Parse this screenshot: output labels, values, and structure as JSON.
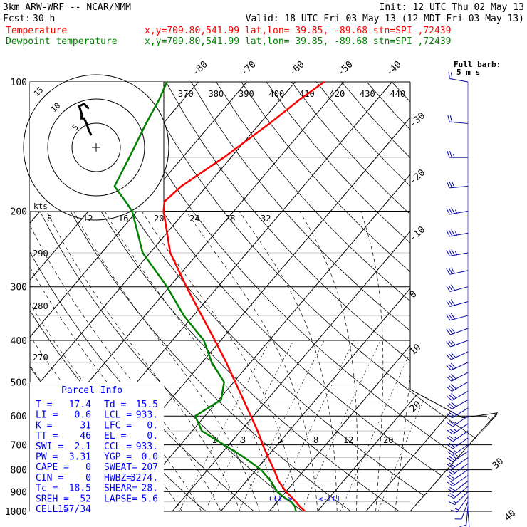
{
  "header": {
    "model": "3km ARW-WRF -- NCAR/MMM",
    "init": "Init: 12 UTC Thu 02 May 13",
    "fcst_label": "Fcst:",
    "fcst_value": "30 h",
    "valid": "Valid: 18 UTC Fri 03 May 13 (12 MDT Fri 03 May 13)"
  },
  "legend": {
    "temperature": {
      "name": "Temperature",
      "color": "#ff0000",
      "loc": "x,y=709.80,541.99  lat,lon= 39.85, -89.68  stn=SPI ,72439"
    },
    "dewpoint": {
      "name": "Dewpoint temperature",
      "color": "#008000",
      "loc": "x,y=709.80,541.99  lat,lon= 39.85, -89.68  stn=SPI ,72439"
    }
  },
  "barb_legend": {
    "line1": "Full barb:",
    "line2": "5 m s"
  },
  "hodograph": {
    "rings": [
      "5",
      "10",
      "15"
    ],
    "axis_label": "kts"
  },
  "parcel": {
    "title": "Parcel Info",
    "rows": [
      [
        "T  =",
        "17.4",
        "Td =",
        "15.5"
      ],
      [
        "LI =",
        "0.6",
        "LCL =",
        "933."
      ],
      [
        "K  =",
        "31",
        "LFC =",
        "0."
      ],
      [
        "TT =",
        "46",
        "EL  =",
        "0."
      ],
      [
        "SWI =",
        "2.1",
        "CCL =",
        "933."
      ],
      [
        "PW =",
        "3.31",
        "YGP =",
        "0.0"
      ],
      [
        "CAPE =",
        "0",
        "SWEAT=",
        "207"
      ],
      [
        "CIN =",
        "0",
        "HWBZ=",
        "3274."
      ],
      [
        "Tc =",
        "18.5",
        "SHEAR=",
        "28."
      ],
      [
        "SREH =",
        "52",
        "LAPSE=",
        "5.6"
      ],
      [
        "CELL =",
        "157/34",
        "",
        ""
      ]
    ]
  },
  "level_markers": {
    "ccl": "CCL->",
    "lcl": "<-LCL"
  },
  "colors": {
    "temperature": "#ff0000",
    "dewpoint": "#008000",
    "barbs": "#0000a0",
    "parcel_text": "#0000ff"
  },
  "chart_data": {
    "type": "line",
    "title": "",
    "xlabel": "",
    "ylabel": "",
    "pressure_levels": [
      100,
      200,
      300,
      400,
      500,
      600,
      700,
      800,
      900,
      1000
    ],
    "temperature_ticks": [
      -80,
      -70,
      -60,
      -50,
      -40,
      -30,
      -20,
      -10,
      0,
      10,
      20,
      30,
      40
    ],
    "theta_labels": [
      "370",
      "380",
      "390",
      "400",
      "410",
      "420",
      "430",
      "440"
    ],
    "mixing_ratio_upper_labels": [
      "8",
      "12",
      "16",
      "20",
      "24",
      "28",
      "32"
    ],
    "mixing_ratio_lower_labels": [
      "2",
      "3",
      "5",
      "8",
      "12",
      "20"
    ],
    "theta_side_labels": [
      "290",
      "280",
      "270"
    ],
    "series": [
      {
        "name": "Temperature",
        "p": [
          1000,
          975,
          950,
          925,
          900,
          850,
          800,
          750,
          700,
          650,
          600,
          550,
          500,
          450,
          400,
          350,
          300,
          250,
          200,
          190,
          175,
          150,
          125,
          110,
          100
        ],
        "t": [
          17.4,
          15.5,
          13.8,
          12.0,
          10.0,
          6.6,
          3.7,
          0.4,
          -3.0,
          -6.5,
          -10.5,
          -14.9,
          -19.7,
          -25.0,
          -31.2,
          -38.3,
          -46.5,
          -55.8,
          -64.5,
          -66.0,
          -65.2,
          -61.5,
          -58.0,
          -56.0,
          -54.0
        ]
      },
      {
        "name": "Dewpoint temperature",
        "p": [
          1000,
          975,
          950,
          925,
          900,
          850,
          800,
          750,
          700,
          650,
          600,
          550,
          500,
          450,
          400,
          350,
          300,
          250,
          200,
          190,
          175,
          150,
          125,
          110,
          100
        ],
        "t": [
          15.5,
          14.5,
          12.8,
          10.4,
          8.2,
          5.0,
          1.0,
          -4.5,
          -11.0,
          -18.0,
          -22.0,
          -19.5,
          -22.0,
          -28.0,
          -33.5,
          -42.0,
          -50.5,
          -61.5,
          -71.0,
          -74.0,
          -79.0,
          -81.0,
          -83.5,
          -85.0,
          -86.5
        ]
      }
    ],
    "wind": {
      "units": "kts",
      "p": [
        1000,
        975,
        950,
        925,
        900,
        875,
        850,
        825,
        800,
        775,
        750,
        725,
        700,
        675,
        650,
        625,
        600,
        575,
        550,
        525,
        500,
        475,
        450,
        425,
        400,
        375,
        350,
        325,
        300,
        275,
        250,
        225,
        200,
        175,
        150,
        125,
        100
      ],
      "dir": [
        175,
        185,
        200,
        215,
        225,
        230,
        232,
        235,
        235,
        235,
        235,
        235,
        235,
        235,
        235,
        235,
        235,
        238,
        240,
        240,
        240,
        242,
        245,
        245,
        250,
        250,
        255,
        255,
        255,
        258,
        260,
        260,
        260,
        265,
        270,
        275,
        280
      ],
      "spd": [
        5,
        10,
        12,
        15,
        18,
        20,
        20,
        20,
        20,
        22,
        22,
        25,
        25,
        25,
        25,
        25,
        28,
        30,
        30,
        30,
        30,
        30,
        30,
        30,
        30,
        30,
        30,
        30,
        30,
        32,
        35,
        35,
        35,
        30,
        25,
        20,
        20
      ]
    },
    "hodograph_points_kts": [
      [
        -2,
        5
      ],
      [
        -3,
        7
      ],
      [
        -4,
        10
      ],
      [
        -5,
        12
      ],
      [
        -6,
        12
      ],
      [
        -6,
        14
      ],
      [
        -7,
        17
      ],
      [
        -5,
        18
      ],
      [
        -3,
        16
      ]
    ]
  }
}
